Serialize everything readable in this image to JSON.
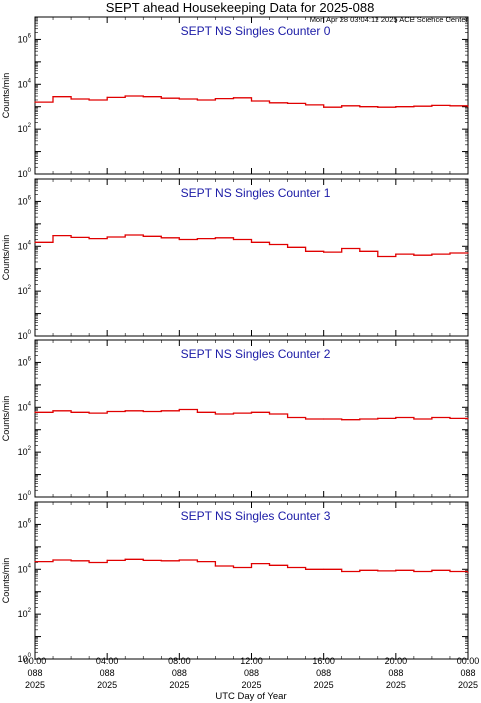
{
  "header": {
    "title": "SEPT ahead Housekeeping Data for 2025-088",
    "timestamp": "Mon Apr 28 03:04:11 2025 ACE Science Center"
  },
  "x_axis": {
    "label": "UTC Day of Year",
    "ticks": [
      {
        "time": "00:00",
        "day": "088",
        "year": "2025"
      },
      {
        "time": "04:00",
        "day": "088",
        "year": "2025"
      },
      {
        "time": "08:00",
        "day": "088",
        "year": "2025"
      },
      {
        "time": "12:00",
        "day": "088",
        "year": "2025"
      },
      {
        "time": "16:00",
        "day": "088",
        "year": "2025"
      },
      {
        "time": "20:00",
        "day": "088",
        "year": "2025"
      },
      {
        "time": "00:00",
        "day": "088",
        "year": "2025"
      }
    ]
  },
  "y_axis": {
    "label": "Counts/min",
    "tick_labels": [
      {
        "base": "10",
        "exp": "0",
        "value": 1
      },
      {
        "base": "10",
        "exp": "2",
        "value": 100
      },
      {
        "base": "10",
        "exp": "4",
        "value": 10000
      },
      {
        "base": "10",
        "exp": "6",
        "value": 1000000
      }
    ]
  },
  "colors": {
    "series": "#e00000",
    "panel_title": "#1a1aa6"
  },
  "chart_data": [
    {
      "type": "line",
      "title": "SEPT NS Singles Counter 0",
      "ylabel": "Counts/min",
      "xlabel": "",
      "yscale": "log",
      "ylim": [
        1,
        10000000
      ],
      "xlim": [
        0,
        24
      ],
      "x_unit": "hours UTC",
      "x": [
        0,
        1,
        2,
        3,
        4,
        5,
        6,
        7,
        8,
        9,
        10,
        11,
        12,
        13,
        14,
        15,
        16,
        17,
        18,
        19,
        20,
        21,
        22,
        23,
        24
      ],
      "values": [
        1600,
        2800,
        2200,
        2000,
        2600,
        3000,
        2800,
        2400,
        2200,
        2000,
        2300,
        2500,
        1800,
        1500,
        1400,
        1200,
        950,
        1100,
        1000,
        950,
        1000,
        1050,
        1150,
        1100,
        1000
      ]
    },
    {
      "type": "line",
      "title": "SEPT NS Singles Counter 1",
      "ylabel": "Counts/min",
      "xlabel": "",
      "yscale": "log",
      "ylim": [
        1,
        10000000
      ],
      "xlim": [
        0,
        24
      ],
      "x_unit": "hours UTC",
      "x": [
        0,
        1,
        2,
        3,
        4,
        5,
        6,
        7,
        8,
        9,
        10,
        11,
        12,
        13,
        14,
        15,
        16,
        17,
        18,
        19,
        20,
        21,
        22,
        23,
        24
      ],
      "values": [
        15000,
        30000,
        25000,
        22000,
        26000,
        32000,
        28000,
        24000,
        20000,
        22000,
        24000,
        20000,
        15000,
        12000,
        9000,
        6000,
        5500,
        8000,
        6000,
        3500,
        4500,
        4000,
        4500,
        5000,
        5000
      ]
    },
    {
      "type": "line",
      "title": "SEPT NS Singles Counter 2",
      "ylabel": "Counts/min",
      "xlabel": "",
      "yscale": "log",
      "ylim": [
        1,
        10000000
      ],
      "xlim": [
        0,
        24
      ],
      "x_unit": "hours UTC",
      "x": [
        0,
        1,
        2,
        3,
        4,
        5,
        6,
        7,
        8,
        9,
        10,
        11,
        12,
        13,
        14,
        15,
        16,
        17,
        18,
        19,
        20,
        21,
        22,
        23,
        24
      ],
      "values": [
        6000,
        7000,
        6000,
        5500,
        6500,
        7000,
        6500,
        7000,
        8000,
        6000,
        5000,
        5500,
        6000,
        5000,
        3500,
        3000,
        3000,
        2800,
        3000,
        3200,
        3500,
        3000,
        3500,
        3200,
        3000
      ]
    },
    {
      "type": "line",
      "title": "SEPT NS Singles Counter 3",
      "ylabel": "Counts/min",
      "xlabel": "",
      "yscale": "log",
      "ylim": [
        1,
        10000000
      ],
      "xlim": [
        0,
        24
      ],
      "x_unit": "hours UTC",
      "x": [
        0,
        1,
        2,
        3,
        4,
        5,
        6,
        7,
        8,
        9,
        10,
        11,
        12,
        13,
        14,
        15,
        16,
        17,
        18,
        19,
        20,
        21,
        22,
        23,
        24
      ],
      "values": [
        22000,
        26000,
        24000,
        20000,
        25000,
        28000,
        25000,
        24000,
        26000,
        22000,
        14000,
        12000,
        18000,
        15000,
        12000,
        10000,
        10000,
        8000,
        9000,
        8500,
        9000,
        8000,
        9000,
        8000,
        7000
      ]
    }
  ]
}
